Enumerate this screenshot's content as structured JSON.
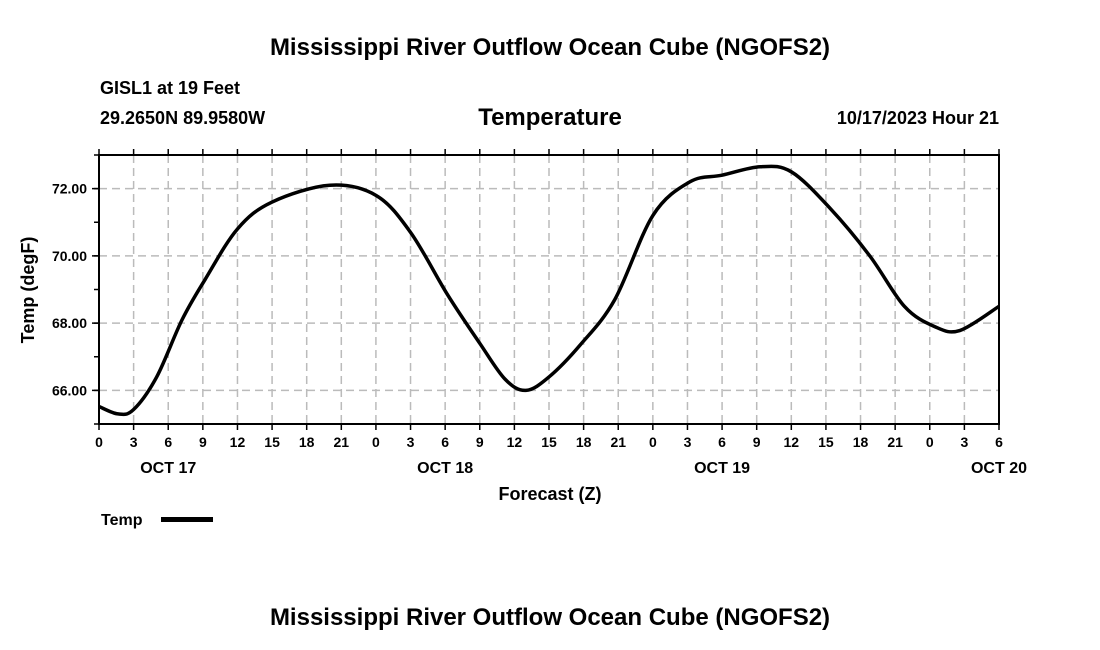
{
  "chart_data": {
    "type": "line",
    "title": "Mississippi River Outflow Ocean Cube (NGOFS2)",
    "footer_title": "Mississippi River Outflow Ocean Cube (NGOFS2)",
    "station": "GISL1 at 19 Feet",
    "location": "29.2650N  89.9580W",
    "subtitle": "Temperature",
    "timestamp": "10/17/2023 Hour 21",
    "xlabel": "Forecast (Z)",
    "ylabel": "Temp (degF)",
    "xlim": [
      0,
      78
    ],
    "ylim": [
      65,
      73
    ],
    "grid": true,
    "x_tick_labels": [
      "0",
      "3",
      "6",
      "9",
      "12",
      "15",
      "18",
      "21",
      "0",
      "3",
      "6",
      "9",
      "12",
      "15",
      "18",
      "21",
      "0",
      "3",
      "6",
      "9",
      "12",
      "15",
      "18",
      "21",
      "0",
      "3",
      "6"
    ],
    "date_labels": [
      {
        "hour": 6,
        "label": "OCT 17"
      },
      {
        "hour": 30,
        "label": "OCT 18"
      },
      {
        "hour": 54,
        "label": "OCT 19"
      },
      {
        "hour": 78,
        "label": "OCT 20"
      }
    ],
    "y_ticks": [
      {
        "value": 66,
        "label": "66.00"
      },
      {
        "value": 68,
        "label": "68.00"
      },
      {
        "value": 70,
        "label": "70.00"
      },
      {
        "value": 72,
        "label": "72.00"
      }
    ],
    "legend": {
      "label": "Temp",
      "placement": "bottom-left"
    },
    "series": [
      {
        "name": "Temp",
        "x": [
          0,
          1.65,
          3,
          5,
          7.2,
          9.2,
          12,
          15,
          20,
          24,
          27,
          30.2,
          33,
          35.2,
          37,
          39,
          41.7,
          44.7,
          48,
          51.2,
          54,
          57.3,
          60,
          63.4,
          66.8,
          69.8,
          72.4,
          74.6,
          78
        ],
        "values": [
          65.52,
          65.3,
          65.43,
          66.4,
          68.1,
          69.3,
          70.8,
          71.6,
          72.1,
          71.8,
          70.7,
          68.85,
          67.4,
          66.33,
          66.0,
          66.4,
          67.35,
          68.7,
          71.2,
          72.2,
          72.4,
          72.65,
          72.5,
          71.4,
          70.0,
          68.5,
          67.9,
          67.78,
          68.5
        ]
      }
    ]
  }
}
